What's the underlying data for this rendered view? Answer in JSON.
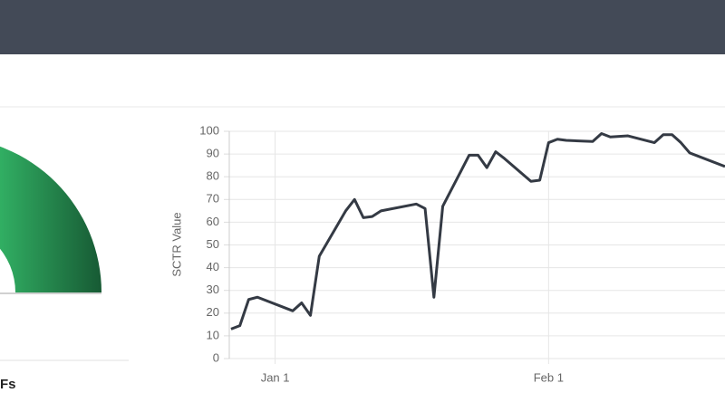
{
  "gauge_label": "Fs",
  "chart_data": {
    "type": "line",
    "y_label": "SCTR Value",
    "x": [
      -4,
      -3,
      -2,
      -1,
      3,
      4,
      5,
      6,
      9,
      10,
      11,
      12,
      13,
      17,
      18,
      19,
      20,
      23,
      24,
      25,
      26,
      27,
      30,
      31,
      32,
      33,
      34,
      37,
      38,
      39,
      41,
      44,
      45,
      46,
      47,
      48,
      52
    ],
    "series": [
      {
        "color": "#343a44",
        "values": [
          13,
          14.5,
          26,
          27,
          21,
          24.5,
          19,
          45,
          65,
          70,
          62,
          62.5,
          65,
          68,
          66,
          27,
          67,
          89.5,
          89.5,
          84,
          91,
          88,
          78,
          78.5,
          95,
          96.5,
          96,
          95.5,
          99,
          97.5,
          98,
          95,
          98.5,
          98.5,
          95,
          90.5,
          84.5
        ]
      }
    ],
    "xlim": [
      -4.2,
      52
    ],
    "xticks": [
      {
        "value": 1,
        "label": "Jan 1"
      },
      {
        "value": 32,
        "label": "Feb 1"
      }
    ],
    "ylim": [
      0,
      100
    ],
    "yticks": [
      0,
      10,
      20,
      30,
      40,
      50,
      60,
      70,
      80,
      90,
      100
    ],
    "grid": true
  }
}
